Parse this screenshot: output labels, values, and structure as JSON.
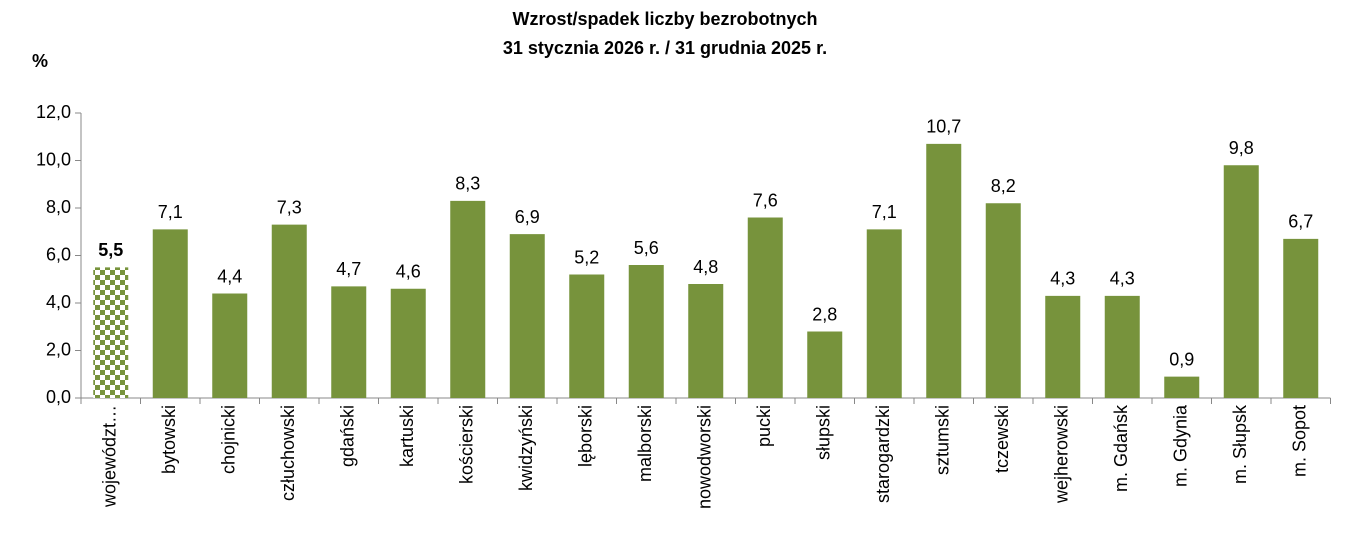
{
  "chart_data": {
    "type": "bar",
    "title": [
      "Wzrost/spadek liczby bezrobotnych",
      "31 stycznia 2026 r. / 31 grudnia 2025 r."
    ],
    "y_label": "%",
    "categories": [
      "województ…",
      "bytowski",
      "chojnicki",
      "człuchowski",
      "gdański",
      "kartuski",
      "kościerski",
      "kwidzyński",
      "lęborski",
      "malborski",
      "nowodworski",
      "pucki",
      "słupski",
      "starogardzki",
      "sztumski",
      "tczewski",
      "wejherowski",
      "m. Gdańsk",
      "m. Gdynia",
      "m. Słupsk",
      "m. Sopot"
    ],
    "values": [
      5.5,
      7.1,
      4.4,
      7.3,
      4.7,
      4.6,
      8.3,
      6.9,
      5.2,
      5.6,
      4.8,
      7.6,
      2.8,
      7.1,
      10.7,
      8.2,
      4.3,
      4.3,
      0.9,
      9.8,
      6.7
    ],
    "value_labels": [
      "5,5",
      "7,1",
      "4,4",
      "7,3",
      "4,7",
      "4,6",
      "8,3",
      "6,9",
      "5,2",
      "5,6",
      "4,8",
      "7,6",
      "2,8",
      "7,1",
      "10,7",
      "8,2",
      "4,3",
      "4,3",
      "0,9",
      "9,8",
      "6,7"
    ],
    "color": "#77933c",
    "highlight_index": 0,
    "ylim": [
      0,
      12
    ],
    "yticks": [
      {
        "value": 0,
        "label": "0,0"
      },
      {
        "value": 2,
        "label": "2,0"
      },
      {
        "value": 4,
        "label": "4,0"
      },
      {
        "value": 6,
        "label": "6,0"
      },
      {
        "value": 8,
        "label": "8,0"
      },
      {
        "value": 10,
        "label": "10,0"
      },
      {
        "value": 12,
        "label": "12,0"
      }
    ],
    "grid": false
  }
}
